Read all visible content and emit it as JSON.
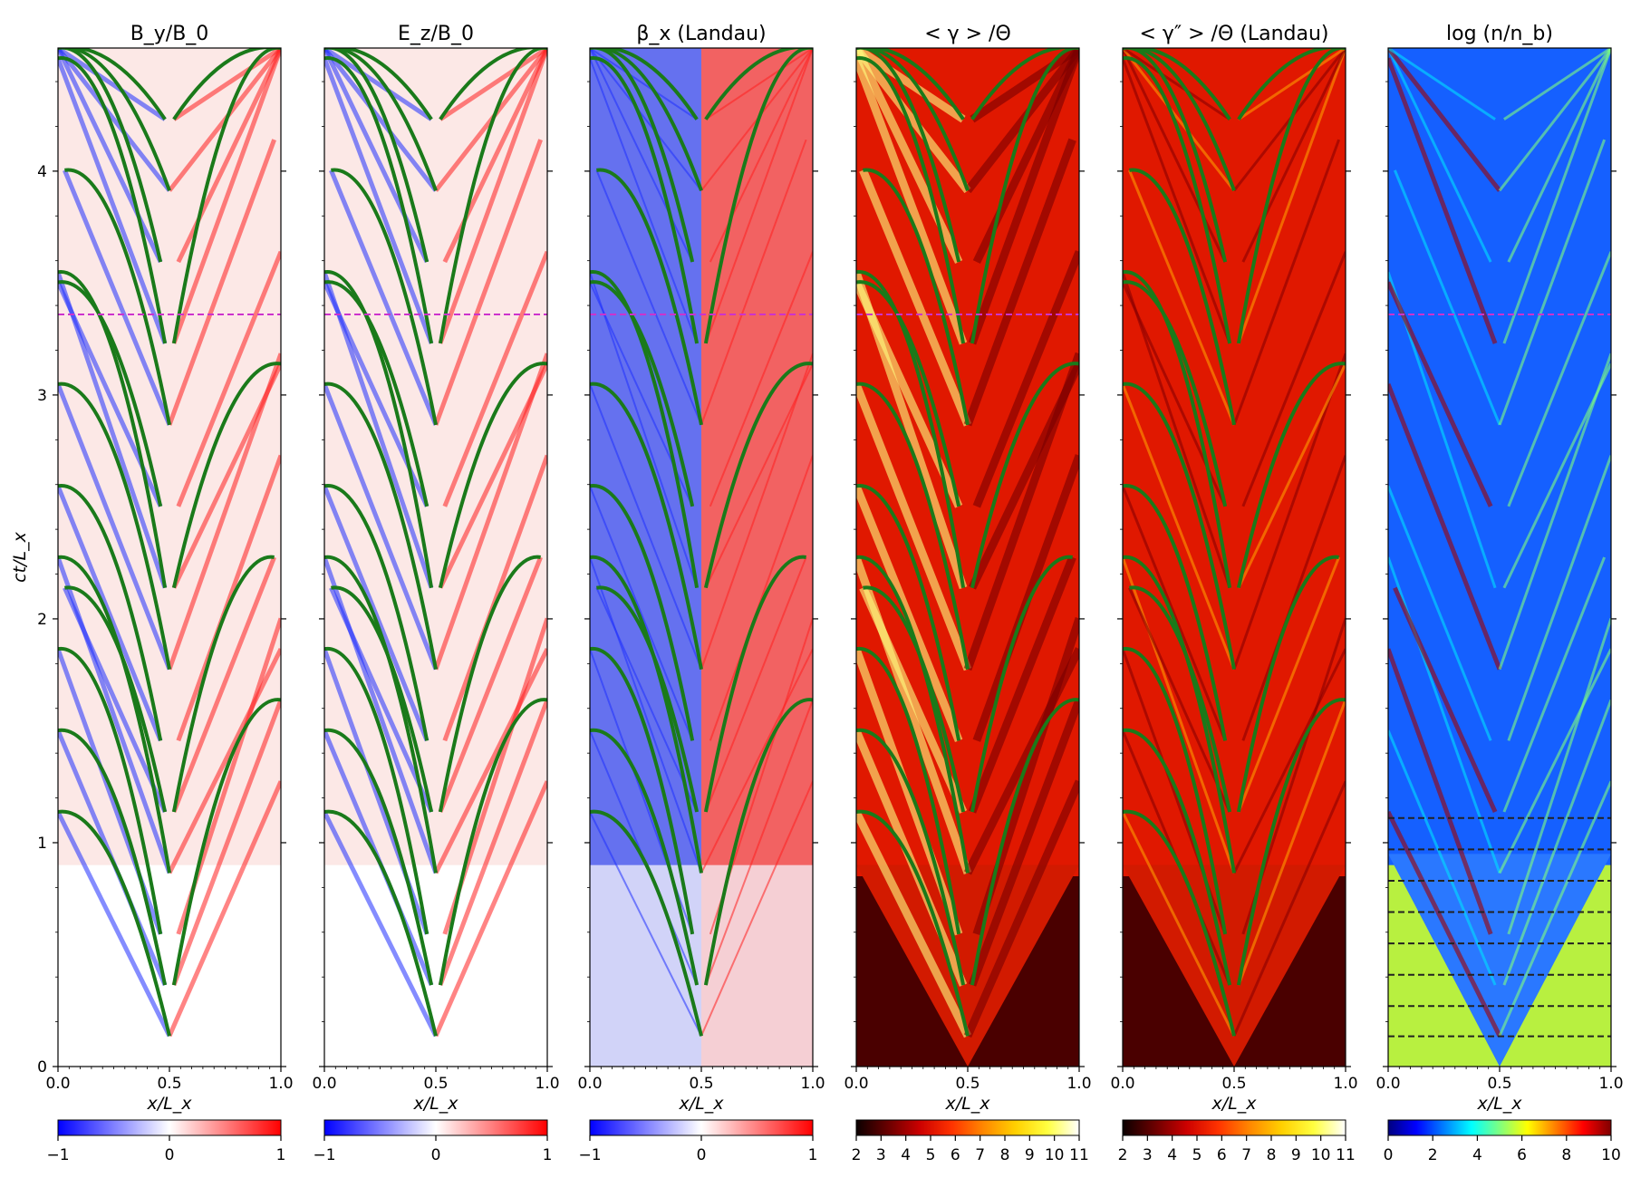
{
  "chart_data": [
    {
      "type": "heatmap",
      "title": "B_y/B_0",
      "xlabel": "x/L_x",
      "ylabel": "ct/L_x",
      "xlim": [
        0.0,
        1.0
      ],
      "ylim": [
        0,
        4.55
      ],
      "x_ticks": [
        "0.0",
        "0.5",
        "1.0"
      ],
      "y_ticks": [
        "0",
        "1",
        "2",
        "3",
        "4"
      ],
      "colormap": "bwr",
      "colorbar_range": [
        -1,
        1
      ],
      "colorbar_ticks": [
        "−1",
        "0",
        "1"
      ],
      "dashed_lines": [
        {
          "y": 3.36,
          "color": "#cc33cc"
        }
      ],
      "overlay_curves_color": "#1a7a1a"
    },
    {
      "type": "heatmap",
      "title": "E_z/B_0",
      "xlabel": "x/L_x",
      "xlim": [
        0.0,
        1.0
      ],
      "ylim": [
        0,
        4.55
      ],
      "x_ticks": [
        "0.0",
        "0.5",
        "1.0"
      ],
      "colormap": "bwr",
      "colorbar_range": [
        -1,
        1
      ],
      "colorbar_ticks": [
        "−1",
        "0",
        "1"
      ],
      "dashed_lines": [
        {
          "y": 3.36,
          "color": "#cc33cc"
        }
      ],
      "overlay_curves_color": "#1a7a1a"
    },
    {
      "type": "heatmap",
      "title": "β_x (Landau)",
      "xlabel": "x/L_x",
      "xlim": [
        0.0,
        1.0
      ],
      "ylim": [
        0,
        4.55
      ],
      "x_ticks": [
        "0.0",
        "0.5",
        "1.0"
      ],
      "colormap": "bwr",
      "colorbar_range": [
        -1,
        1
      ],
      "colorbar_ticks": [
        "−1",
        "0",
        "1"
      ],
      "dashed_lines": [
        {
          "y": 3.36,
          "color": "#cc33cc"
        }
      ],
      "overlay_curves_color": "#1a7a1a"
    },
    {
      "type": "heatmap",
      "title": "< γ > /Θ",
      "xlabel": "x/L_x",
      "xlim": [
        0.0,
        1.0
      ],
      "ylim": [
        0,
        4.55
      ],
      "x_ticks": [
        "0.0",
        "0.5",
        "1.0"
      ],
      "colormap": "hot",
      "colorbar_range": [
        2,
        11
      ],
      "colorbar_ticks": [
        "2",
        "3",
        "4",
        "5",
        "6",
        "7",
        "8",
        "9",
        "10",
        "11"
      ],
      "dashed_lines": [
        {
          "y": 3.36,
          "color": "#cc33cc"
        }
      ],
      "overlay_curves_color": "#1a7a1a"
    },
    {
      "type": "heatmap",
      "title": "< γ″ > /Θ (Landau)",
      "xlabel": "x/L_x",
      "xlim": [
        0.0,
        1.0
      ],
      "ylim": [
        0,
        4.55
      ],
      "x_ticks": [
        "0.0",
        "0.5",
        "1.0"
      ],
      "colormap": "hot",
      "colorbar_range": [
        2,
        11
      ],
      "colorbar_ticks": [
        "2",
        "3",
        "4",
        "5",
        "6",
        "7",
        "8",
        "9",
        "10",
        "11"
      ],
      "overlay_curves_color": "#1a7a1a"
    },
    {
      "type": "heatmap",
      "title": "log (n/n_b)",
      "xlabel": "x/L_x",
      "xlim": [
        0.0,
        1.0
      ],
      "ylim": [
        0,
        4.55
      ],
      "x_ticks": [
        "0.0",
        "0.5",
        "1.0"
      ],
      "colormap": "jet",
      "colorbar_range": [
        0,
        10
      ],
      "colorbar_ticks": [
        "0",
        "2",
        "4",
        "6",
        "8",
        "10"
      ],
      "dashed_lines": [
        {
          "y": 3.36,
          "color": "#cc33cc"
        },
        {
          "y": 0.135,
          "color": "#222222"
        },
        {
          "y": 0.27,
          "color": "#222222"
        },
        {
          "y": 0.41,
          "color": "#222222"
        },
        {
          "y": 0.55,
          "color": "#222222"
        },
        {
          "y": 0.69,
          "color": "#222222"
        },
        {
          "y": 0.83,
          "color": "#222222"
        },
        {
          "y": 0.97,
          "color": "#222222"
        },
        {
          "y": 1.11,
          "color": "#222222"
        }
      ]
    }
  ],
  "colormaps": {
    "bwr": [
      "#0000ff",
      "#ffffff",
      "#ff0000"
    ],
    "hot": [
      "#0b0000",
      "#6a0000",
      "#cc0000",
      "#ff3300",
      "#ff8800",
      "#ffd000",
      "#ffff40",
      "#ffffff"
    ],
    "jet": [
      "#00007f",
      "#0000ff",
      "#007fff",
      "#00ffff",
      "#7fff7f",
      "#ffff00",
      "#ff7f00",
      "#ff0000",
      "#7f0000"
    ]
  },
  "panel_backgrounds": {
    "bwr": "#fce8e6",
    "hot": "#e01800",
    "jet": "#1560ff"
  }
}
